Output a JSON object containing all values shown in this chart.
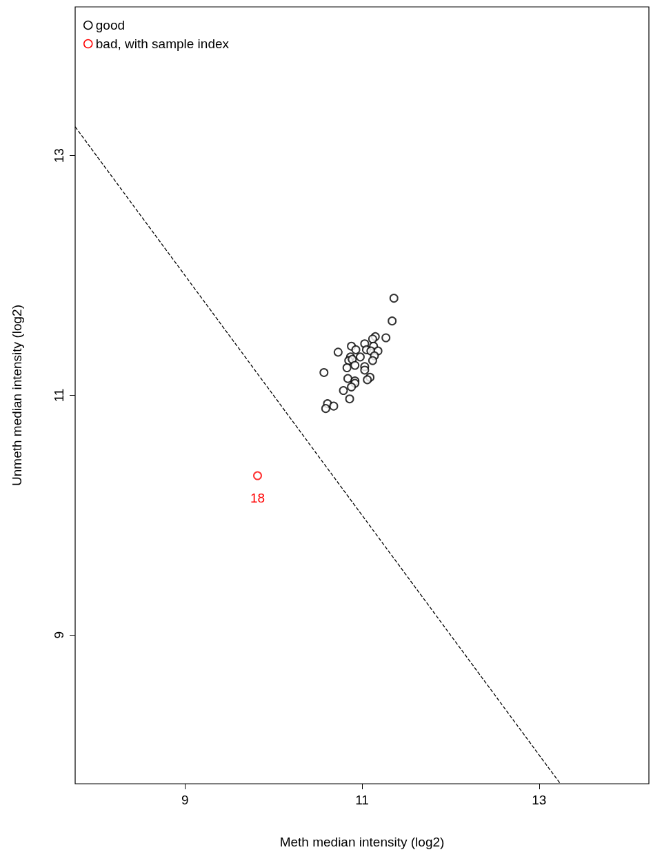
{
  "chart_data": {
    "type": "scatter",
    "xlabel": "Meth median intensity (log2)",
    "ylabel": "Unmeth median intensity (log2)",
    "xlim": [
      7.76,
      14.24
    ],
    "ylim": [
      7.76,
      14.24
    ],
    "xticks": [
      9,
      11,
      13
    ],
    "yticks": [
      9,
      11,
      13
    ],
    "grid": false,
    "legend": "top left",
    "marker": "circle",
    "series": [
      {
        "name": "good",
        "color": "#000000",
        "x": [
          11.36,
          11.34,
          11.27,
          11.15,
          11.12,
          11.03,
          10.88,
          10.93,
          10.73,
          11.13,
          11.05,
          11.1,
          11.18,
          11.14,
          10.87,
          10.98,
          10.85,
          10.89,
          10.92,
          11.12,
          10.83,
          11.03,
          11.03,
          10.57,
          10.84,
          10.92,
          10.92,
          10.88,
          11.09,
          11.06,
          10.79,
          10.86,
          10.61,
          10.68,
          10.59
        ],
        "values": [
          11.81,
          11.62,
          11.48,
          11.49,
          11.47,
          11.43,
          11.41,
          11.38,
          11.36,
          11.41,
          11.38,
          11.37,
          11.37,
          11.33,
          11.32,
          11.32,
          11.29,
          11.3,
          11.25,
          11.29,
          11.23,
          11.24,
          11.21,
          11.19,
          11.14,
          11.12,
          11.1,
          11.07,
          11.15,
          11.13,
          11.04,
          10.97,
          10.93,
          10.91,
          10.89
        ]
      },
      {
        "name": "bad, with sample index",
        "color": "#ff0000",
        "x": [
          9.82
        ],
        "values": [
          10.33
        ]
      },
      {
        "type": "line",
        "color": "#000000",
        "line_style": "dashed",
        "marker": "none",
        "x": [
          7.76,
          13.24
        ],
        "values": [
          13.24,
          7.76
        ]
      }
    ],
    "annotations": [
      {
        "text": "18",
        "x": 9.82,
        "y": 10.33
      }
    ]
  }
}
